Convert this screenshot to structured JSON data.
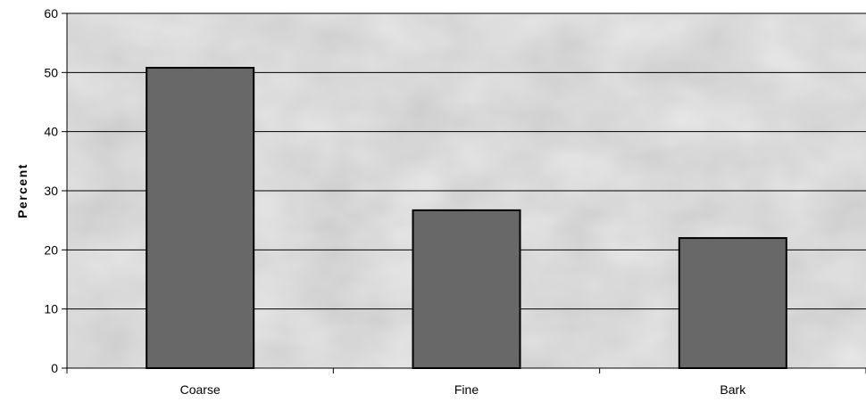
{
  "chart_data": {
    "type": "bar",
    "categories": [
      "Coarse",
      "Fine",
      "Bark"
    ],
    "values": [
      50.8,
      26.7,
      22.0
    ],
    "xlabel": "",
    "ylabel": "Percent",
    "ylim": [
      0,
      60
    ],
    "yticks": [
      "0",
      "10",
      "20",
      "30",
      "40",
      "50",
      "60"
    ],
    "grid": true,
    "legend": "none",
    "colors": {
      "bar_fill": "#686868",
      "bar_stroke": "#000000",
      "gridline": "#000000",
      "plot_background": "#d6d6d6"
    }
  }
}
